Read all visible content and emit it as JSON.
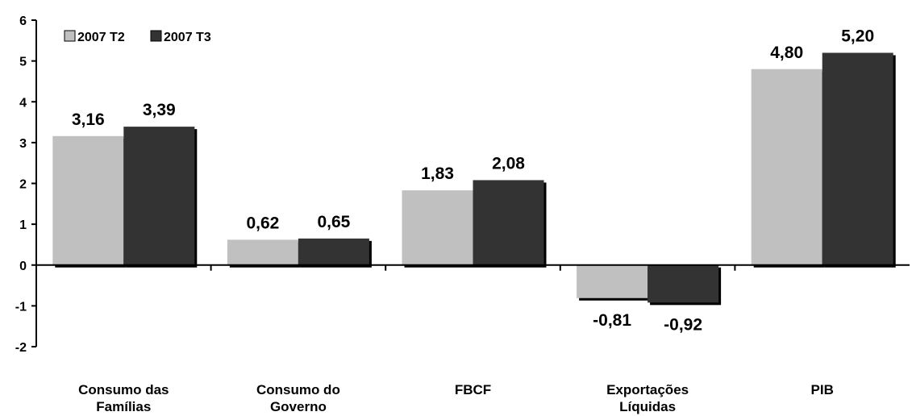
{
  "chart_data": {
    "type": "bar",
    "categories": [
      [
        "Consumo das",
        "Famílias"
      ],
      [
        "Consumo do",
        "Governo"
      ],
      [
        "FBCF"
      ],
      [
        "Exportações",
        "Líquidas"
      ],
      [
        "PIB"
      ]
    ],
    "series": [
      {
        "name": "2007 T2",
        "color": "#c0c0c0",
        "values": [
          3.16,
          0.62,
          1.83,
          -0.81,
          4.8
        ],
        "labels": [
          "3,16",
          "0,62",
          "1,83",
          "-0,81",
          "4,80"
        ]
      },
      {
        "name": "2007 T3",
        "color": "#333333",
        "values": [
          3.39,
          0.65,
          2.08,
          -0.92,
          5.2
        ],
        "labels": [
          "3,39",
          "0,65",
          "2,08",
          "-0,92",
          "5,20"
        ]
      }
    ],
    "ylim": [
      -2,
      6
    ],
    "yticks": [
      -2,
      -1,
      0,
      1,
      2,
      3,
      4,
      5,
      6
    ],
    "grid": false,
    "legend": "top-left",
    "title": "",
    "xlabel": "",
    "ylabel": ""
  }
}
